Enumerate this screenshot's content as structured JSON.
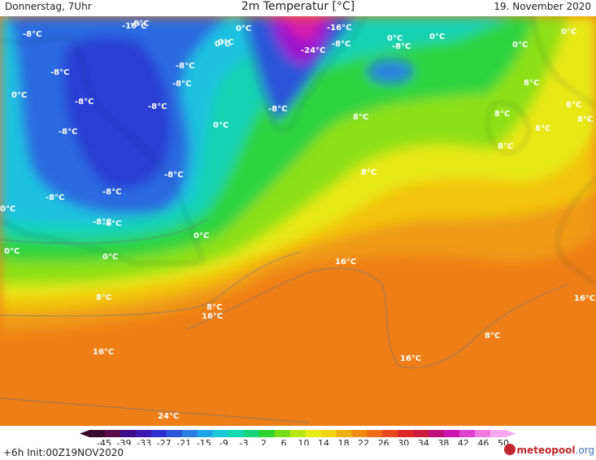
{
  "header": {
    "left": "Donnerstag, 7Uhr",
    "center": "2m Temperatur [°C]",
    "right": "19. November 2020"
  },
  "map": {
    "labels": [
      {
        "text": "-8°C"
      },
      {
        "text": "-16°C"
      },
      {
        "text": "-8°C"
      },
      {
        "text": "-8°C"
      },
      {
        "text": "0°C"
      },
      {
        "text": "-8°C"
      },
      {
        "text": "-8°C"
      },
      {
        "text": "-8°C"
      },
      {
        "text": "0°C"
      },
      {
        "text": "-8°C"
      },
      {
        "text": "-8°C"
      },
      {
        "text": "0°C"
      },
      {
        "text": "0°C"
      },
      {
        "text": "-8°C"
      },
      {
        "text": "-8°C"
      },
      {
        "text": "0°C"
      },
      {
        "text": "0°C"
      },
      {
        "text": "0°C"
      },
      {
        "text": "8°C"
      },
      {
        "text": "8°C"
      },
      {
        "text": "16°C"
      },
      {
        "text": "16°C"
      },
      {
        "text": "16°C"
      },
      {
        "text": "16°C"
      },
      {
        "text": "24°C"
      },
      {
        "text": "0°C"
      },
      {
        "text": "0°C"
      },
      {
        "text": "-16°C"
      },
      {
        "text": "-24°C"
      },
      {
        "text": "-8°C"
      },
      {
        "text": "-8°C"
      },
      {
        "text": "0°C"
      },
      {
        "text": "-8°C"
      },
      {
        "text": "0°C"
      },
      {
        "text": "0°C"
      },
      {
        "text": "0°C"
      },
      {
        "text": "8°C"
      },
      {
        "text": "8°C"
      },
      {
        "text": "8°C"
      },
      {
        "text": "8°C"
      },
      {
        "text": "8°C"
      },
      {
        "text": "8°C"
      },
      {
        "text": "8°C"
      },
      {
        "text": "16°C"
      },
      {
        "text": "8°C"
      },
      {
        "text": "-8°C"
      },
      {
        "text": "-8°C"
      },
      {
        "text": "-8°C"
      },
      {
        "text": "8°C"
      }
    ]
  },
  "colorbar": {
    "ticks": [
      "-45",
      "-39",
      "-33",
      "-27",
      "-21",
      "-15",
      "-9",
      "-3",
      "2",
      "6",
      "10",
      "14",
      "18",
      "22",
      "26",
      "30",
      "34",
      "38",
      "42",
      "46",
      "50"
    ],
    "colors": [
      "#3a0a2a",
      "#5a0a4a",
      "#3d0d8a",
      "#3a18b0",
      "#2e2fd0",
      "#2c54d8",
      "#2a7ee0",
      "#1ea6e6",
      "#1ac8d8",
      "#14d8b0",
      "#18d47a",
      "#2ed42e",
      "#76dc16",
      "#b8e612",
      "#e8ee10",
      "#f0d410",
      "#f0b010",
      "#f08c12",
      "#ee6a14",
      "#e8461c",
      "#de2626",
      "#cc1a3a",
      "#c0107a",
      "#cc14b0",
      "#e040d0",
      "#f07ae0",
      "#f8a8ee"
    ]
  },
  "footer": {
    "run_info": "+6h  Init:00Z19NOV2020",
    "brand_main": "meteopool",
    "brand_domain": ".org"
  }
}
